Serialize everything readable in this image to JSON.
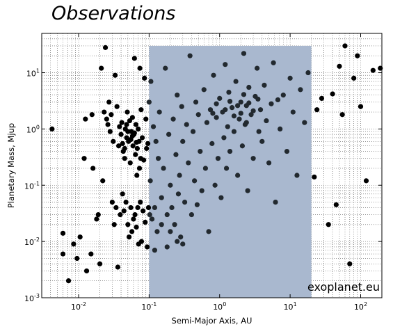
{
  "title": "Observations",
  "watermark": "exoplanet.eu",
  "chart_data": {
    "type": "scatter",
    "title": "Observations",
    "xlabel": "Semi-Major Axis, AU",
    "ylabel": "Planetary Mass, Mjup",
    "x_scale": "log",
    "y_scale": "log",
    "xlim": [
      0.003,
      200
    ],
    "ylim": [
      0.001,
      50
    ],
    "x_ticks": [
      {
        "value": 0.01,
        "base": "10",
        "exp": "-2"
      },
      {
        "value": 0.1,
        "base": "10",
        "exp": "-1"
      },
      {
        "value": 1,
        "base": "10",
        "exp": "0"
      },
      {
        "value": 10,
        "base": "10",
        "exp": "1"
      },
      {
        "value": 100,
        "base": "10",
        "exp": "2"
      }
    ],
    "y_ticks": [
      {
        "value": 0.001,
        "base": "10",
        "exp": "-3"
      },
      {
        "value": 0.01,
        "base": "10",
        "exp": "-2"
      },
      {
        "value": 0.1,
        "base": "10",
        "exp": "-1"
      },
      {
        "value": 1,
        "base": "10",
        "exp": "0"
      },
      {
        "value": 10,
        "base": "10",
        "exp": "1"
      }
    ],
    "grid": true,
    "highlight_region": {
      "x": [
        0.1,
        20
      ],
      "y": [
        0.001,
        30
      ],
      "color": "#a9b8cf"
    },
    "colors": {
      "point": "#000000",
      "point_in_region": "#22292f"
    },
    "series": [
      {
        "points": [
          [
            0.0042,
            1.0
          ],
          [
            0.006,
            0.014
          ],
          [
            0.006,
            0.006
          ],
          [
            0.0072,
            0.002
          ],
          [
            0.0085,
            0.009
          ],
          [
            0.0095,
            0.005
          ],
          [
            0.0105,
            0.012
          ],
          [
            0.012,
            0.3
          ],
          [
            0.013,
            0.003
          ],
          [
            0.0125,
            1.5
          ],
          [
            0.015,
            0.006
          ],
          [
            0.0155,
            1.8
          ],
          [
            0.016,
            0.2
          ],
          [
            0.018,
            0.025
          ],
          [
            0.019,
            0.03
          ],
          [
            0.02,
            0.004
          ],
          [
            0.021,
            12
          ],
          [
            0.022,
            0.12
          ],
          [
            0.024,
            28
          ],
          [
            0.023,
            2.0
          ],
          [
            0.025,
            1.5
          ],
          [
            0.026,
            1.2
          ],
          [
            0.027,
            3.0
          ],
          [
            0.028,
            0.9
          ],
          [
            0.029,
            1.8
          ],
          [
            0.03,
            0.05
          ],
          [
            0.031,
            0.6
          ],
          [
            0.032,
            0.02
          ],
          [
            0.033,
            9
          ],
          [
            0.034,
            0.04
          ],
          [
            0.035,
            2.5
          ],
          [
            0.036,
            0.0035
          ],
          [
            0.037,
            0.5
          ],
          [
            0.038,
            1.1
          ],
          [
            0.039,
            0.03
          ],
          [
            0.04,
            0.8
          ],
          [
            0.041,
            1.3
          ],
          [
            0.042,
            0.07
          ],
          [
            0.043,
            0.4
          ],
          [
            0.044,
            0.035
          ],
          [
            0.045,
            0.3
          ],
          [
            0.046,
            1.0
          ],
          [
            0.047,
            0.05
          ],
          [
            0.048,
            0.7
          ],
          [
            0.049,
            2.0
          ],
          [
            0.05,
            0.02
          ],
          [
            0.051,
            0.6
          ],
          [
            0.052,
            0.012
          ],
          [
            0.053,
            1.4
          ],
          [
            0.054,
            0.25
          ],
          [
            0.055,
            0.04
          ],
          [
            0.056,
            0.9
          ],
          [
            0.057,
            0.015
          ],
          [
            0.058,
            1.6
          ],
          [
            0.059,
            0.5
          ],
          [
            0.06,
            0.025
          ],
          [
            0.061,
            0.8
          ],
          [
            0.062,
            18
          ],
          [
            0.063,
            0.03
          ],
          [
            0.064,
            0.35
          ],
          [
            0.065,
            1.2
          ],
          [
            0.066,
            0.018
          ],
          [
            0.067,
            0.15
          ],
          [
            0.068,
            0.45
          ],
          [
            0.069,
            0.04
          ],
          [
            0.07,
            1.0
          ],
          [
            0.071,
            0.009
          ],
          [
            0.072,
            0.6
          ],
          [
            0.073,
            0.2
          ],
          [
            0.074,
            12
          ],
          [
            0.075,
            0.05
          ],
          [
            0.076,
            0.3
          ],
          [
            0.077,
            2.2
          ],
          [
            0.078,
            0.01
          ],
          [
            0.08,
            0.7
          ],
          [
            0.082,
            0.035
          ],
          [
            0.084,
            0.28
          ],
          [
            0.086,
            8
          ],
          [
            0.088,
            0.022
          ],
          [
            0.09,
            1.5
          ],
          [
            0.092,
            0.45
          ],
          [
            0.094,
            0.008
          ],
          [
            0.096,
            0.55
          ],
          [
            0.098,
            0.04
          ],
          [
            0.1,
            3.0
          ],
          [
            0.102,
            0.03
          ],
          [
            0.104,
            0.12
          ],
          [
            0.106,
            7
          ],
          [
            0.05,
            0.9
          ],
          [
            0.045,
            0.45
          ],
          [
            0.055,
            0.65
          ],
          [
            0.048,
            1.2
          ],
          [
            0.058,
            0.75
          ],
          [
            0.042,
            0.55
          ],
          [
            0.062,
            0.85
          ],
          [
            0.066,
            0.58
          ],
          [
            0.11,
            0.025
          ],
          [
            0.115,
            1.1
          ],
          [
            0.12,
            0.04
          ],
          [
            0.125,
            0.6
          ],
          [
            0.13,
            0.015
          ],
          [
            0.135,
            0.3
          ],
          [
            0.14,
            2.0
          ],
          [
            0.15,
            0.06
          ],
          [
            0.16,
            0.2
          ],
          [
            0.17,
            12
          ],
          [
            0.18,
            0.03
          ],
          [
            0.19,
            0.8
          ],
          [
            0.2,
            0.1
          ],
          [
            0.21,
            0.04
          ],
          [
            0.22,
            1.5
          ],
          [
            0.23,
            0.02
          ],
          [
            0.24,
            0.35
          ],
          [
            0.25,
            4.0
          ],
          [
            0.26,
            0.07
          ],
          [
            0.27,
            0.15
          ],
          [
            0.28,
            0.012
          ],
          [
            0.29,
            2.5
          ],
          [
            0.3,
            0.6
          ],
          [
            0.32,
            0.05
          ],
          [
            0.34,
            1.2
          ],
          [
            0.36,
            0.25
          ],
          [
            0.38,
            20
          ],
          [
            0.4,
            0.03
          ],
          [
            0.42,
            0.9
          ],
          [
            0.44,
            0.12
          ],
          [
            0.46,
            3.0
          ],
          [
            0.48,
            0.045
          ],
          [
            0.5,
            1.8
          ],
          [
            0.53,
            0.4
          ],
          [
            0.56,
            0.08
          ],
          [
            0.6,
            5.0
          ],
          [
            0.63,
            0.2
          ],
          [
            0.66,
            1.3
          ],
          [
            0.7,
            0.015
          ],
          [
            0.74,
            2.2
          ],
          [
            0.78,
            0.55
          ],
          [
            0.82,
            9
          ],
          [
            0.86,
            0.1
          ],
          [
            0.9,
            1.6
          ],
          [
            0.95,
            0.3
          ],
          [
            1.0,
            3.5
          ],
          [
            1.05,
            0.06
          ],
          [
            1.1,
            2.0
          ],
          [
            1.15,
            0.7
          ],
          [
            1.2,
            14
          ],
          [
            1.25,
            0.2
          ],
          [
            1.3,
            1.1
          ],
          [
            1.35,
            4.5
          ],
          [
            1.4,
            0.4
          ],
          [
            1.5,
            2.4
          ],
          [
            1.6,
            0.9
          ],
          [
            1.7,
            7.0
          ],
          [
            1.8,
            0.15
          ],
          [
            1.9,
            1.5
          ],
          [
            2.0,
            3.0
          ],
          [
            2.1,
            0.5
          ],
          [
            2.2,
            22
          ],
          [
            2.3,
            1.2
          ],
          [
            2.4,
            2.6
          ],
          [
            2.5,
            0.08
          ],
          [
            2.6,
            5.5
          ],
          [
            2.8,
            1.8
          ],
          [
            3.0,
            0.3
          ],
          [
            3.2,
            3.8
          ],
          [
            3.4,
            12
          ],
          [
            3.6,
            0.9
          ],
          [
            3.8,
            2.2
          ],
          [
            4.0,
            0.6
          ],
          [
            4.3,
            6.0
          ],
          [
            4.6,
            1.4
          ],
          [
            5.0,
            0.25
          ],
          [
            5.4,
            2.8
          ],
          [
            5.8,
            15
          ],
          [
            6.2,
            0.05
          ],
          [
            6.7,
            3.3
          ],
          [
            7.2,
            1.0
          ],
          [
            8.0,
            4.0
          ],
          [
            9.0,
            0.4
          ],
          [
            10.0,
            8.0
          ],
          [
            11.0,
            2.0
          ],
          [
            12.5,
            0.15
          ],
          [
            14.0,
            5.0
          ],
          [
            16.0,
            1.3
          ],
          [
            18.0,
            10.0
          ],
          [
            1.2,
            2.2
          ],
          [
            1.4,
            3.1
          ],
          [
            1.6,
            1.7
          ],
          [
            1.8,
            2.6
          ],
          [
            2.0,
            1.9
          ],
          [
            2.2,
            4.1
          ],
          [
            2.4,
            1.3
          ],
          [
            2.6,
            2.9
          ],
          [
            3.0,
            2.1
          ],
          [
            3.5,
            3.4
          ],
          [
            0.9,
            2.8
          ],
          [
            0.8,
            1.9
          ],
          [
            0.15,
            0.02
          ],
          [
            0.18,
            0.008
          ],
          [
            0.2,
            0.015
          ],
          [
            0.25,
            0.01
          ],
          [
            0.3,
            0.009
          ],
          [
            0.12,
            0.007
          ],
          [
            22,
            0.14
          ],
          [
            24,
            2.2
          ],
          [
            28,
            3.5
          ],
          [
            35,
            0.02
          ],
          [
            40,
            4.2
          ],
          [
            45,
            0.045
          ],
          [
            50,
            13
          ],
          [
            55,
            1.8
          ],
          [
            60,
            30
          ],
          [
            70,
            0.004
          ],
          [
            80,
            8
          ],
          [
            90,
            20
          ],
          [
            100,
            2.5
          ],
          [
            120,
            0.12
          ],
          [
            150,
            11
          ],
          [
            190,
            12
          ]
        ]
      }
    ]
  }
}
